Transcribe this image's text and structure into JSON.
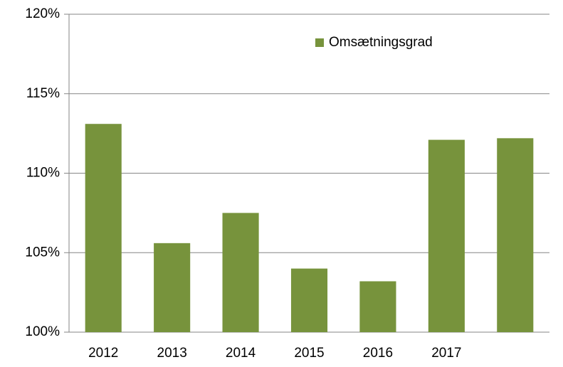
{
  "chart_data": {
    "type": "bar",
    "categories": [
      "2012",
      "2013",
      "2014",
      "2015",
      "2016",
      "2017",
      null
    ],
    "series": [
      {
        "name": "Omsætningsgrad",
        "color": "#77933c",
        "values": [
          113.1,
          105.6,
          107.5,
          104.0,
          103.2,
          112.1,
          112.2
        ]
      }
    ],
    "ylim": [
      100,
      120
    ],
    "yticks": [
      {
        "value": 100,
        "label": "100%"
      },
      {
        "value": 105,
        "label": "105%"
      },
      {
        "value": 110,
        "label": "110%"
      },
      {
        "value": 115,
        "label": "115%"
      },
      {
        "value": 120,
        "label": "120%"
      }
    ],
    "grid": true,
    "legend": "top-right"
  }
}
